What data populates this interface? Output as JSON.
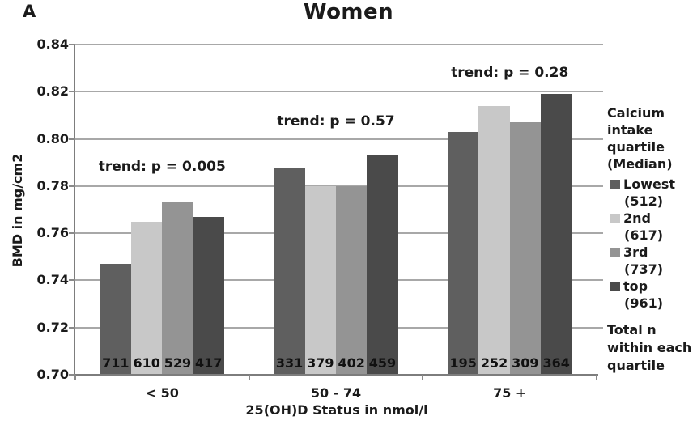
{
  "panel_label": "A",
  "chart_data": {
    "type": "bar",
    "title": "Women",
    "xlabel": "25(OH)D Status in nmol/l",
    "ylabel": "BMD in mg/cm2",
    "ylim": [
      0.7,
      0.84
    ],
    "ytick_labels": [
      "0.84",
      "0.82",
      "0.80",
      "0.78",
      "0.76",
      "0.74",
      "0.72",
      "0.70"
    ],
    "grid": true,
    "legend_position": "right",
    "categories": [
      "< 50",
      "50 - 74",
      "75 +"
    ],
    "series": [
      {
        "name": "Lowest",
        "median": "(512)",
        "color": "#5f5f5f",
        "values": [
          0.747,
          0.788,
          0.803
        ],
        "n": [
          "711",
          "331",
          "195"
        ]
      },
      {
        "name": "2nd",
        "median": "(617)",
        "color": "#c8c8c8",
        "values": [
          0.765,
          0.78,
          0.814
        ],
        "n": [
          "610",
          "379",
          "252"
        ]
      },
      {
        "name": "3rd",
        "median": "(737)",
        "color": "#949494",
        "values": [
          0.773,
          0.78,
          0.807
        ],
        "n": [
          "529",
          "402",
          "309"
        ]
      },
      {
        "name": "top",
        "median": "(961)",
        "color": "#4a4a4a",
        "values": [
          0.767,
          0.793,
          0.819
        ],
        "n": [
          "417",
          "459",
          "364"
        ]
      }
    ],
    "annotations": [
      {
        "text": "trend: p = 0.005",
        "group": 0
      },
      {
        "text": "trend: p = 0.57",
        "group": 1
      },
      {
        "text": "trend: p = 0.28",
        "group": 2
      }
    ],
    "legend_title_lines": [
      "Calcium",
      "intake",
      "quartile",
      "(Median)"
    ],
    "note_lines": [
      "Total n",
      "within each",
      "quartile"
    ]
  }
}
